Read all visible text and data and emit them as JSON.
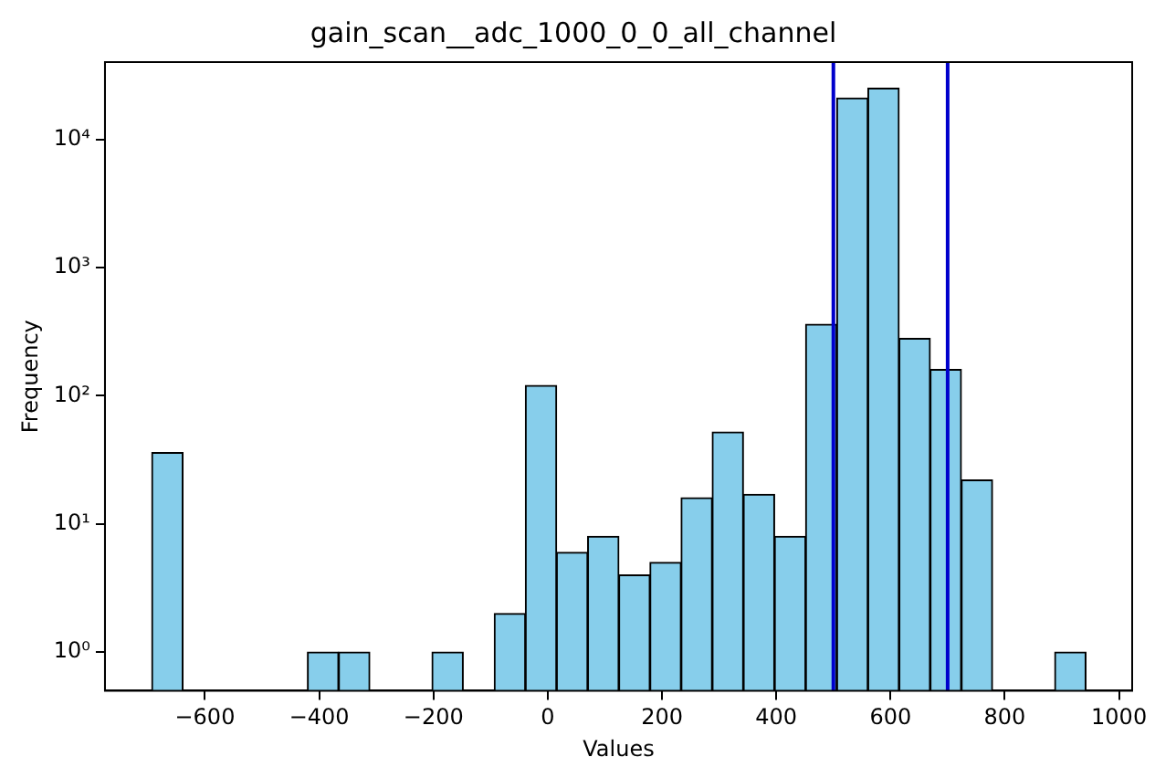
{
  "chart_data": {
    "type": "histogram",
    "title": "gain_scan__adc_1000_0_0_all_channel",
    "xlabel": "Values",
    "ylabel": "Frequency",
    "bins": [
      -693,
      -638.5,
      -584,
      -529.5,
      -475,
      -420.5,
      -366,
      -311.5,
      -257,
      -202.5,
      -148,
      -93.5,
      -39,
      15.5,
      70,
      124.5,
      179,
      233.5,
      288,
      342.5,
      397,
      451.5,
      506,
      560.5,
      615,
      669.5,
      724,
      778.5,
      833,
      887.5,
      942
    ],
    "values": [
      36,
      null,
      null,
      null,
      null,
      1,
      1,
      null,
      null,
      1,
      null,
      2,
      120,
      6,
      8,
      4,
      5,
      16,
      52,
      17,
      8,
      360,
      21000,
      25000,
      280,
      160,
      22,
      null,
      null,
      1
    ],
    "color": "#87ceeb",
    "log": "y",
    "xlim": [
      -775,
      1023
    ],
    "xticks": [
      {
        "value": -600,
        "label": "−600"
      },
      {
        "value": -400,
        "label": "−400"
      },
      {
        "value": -200,
        "label": "−200"
      },
      0,
      200,
      400,
      600,
      800,
      1000
    ],
    "ylim": [
      0.5,
      40000
    ],
    "yticks": [
      {
        "value": 1,
        "label": "10⁰"
      },
      {
        "value": 10,
        "label": "10¹"
      },
      {
        "value": 100,
        "label": "10²"
      },
      {
        "value": 1000,
        "label": "10³"
      },
      {
        "value": 10000,
        "label": "10⁴"
      }
    ],
    "ref_lines": [
      {
        "axis": "x",
        "value": 500,
        "color": "#0000cc"
      },
      {
        "axis": "x",
        "value": 700,
        "color": "#0000cc"
      }
    ],
    "grid": false,
    "legend": false
  }
}
